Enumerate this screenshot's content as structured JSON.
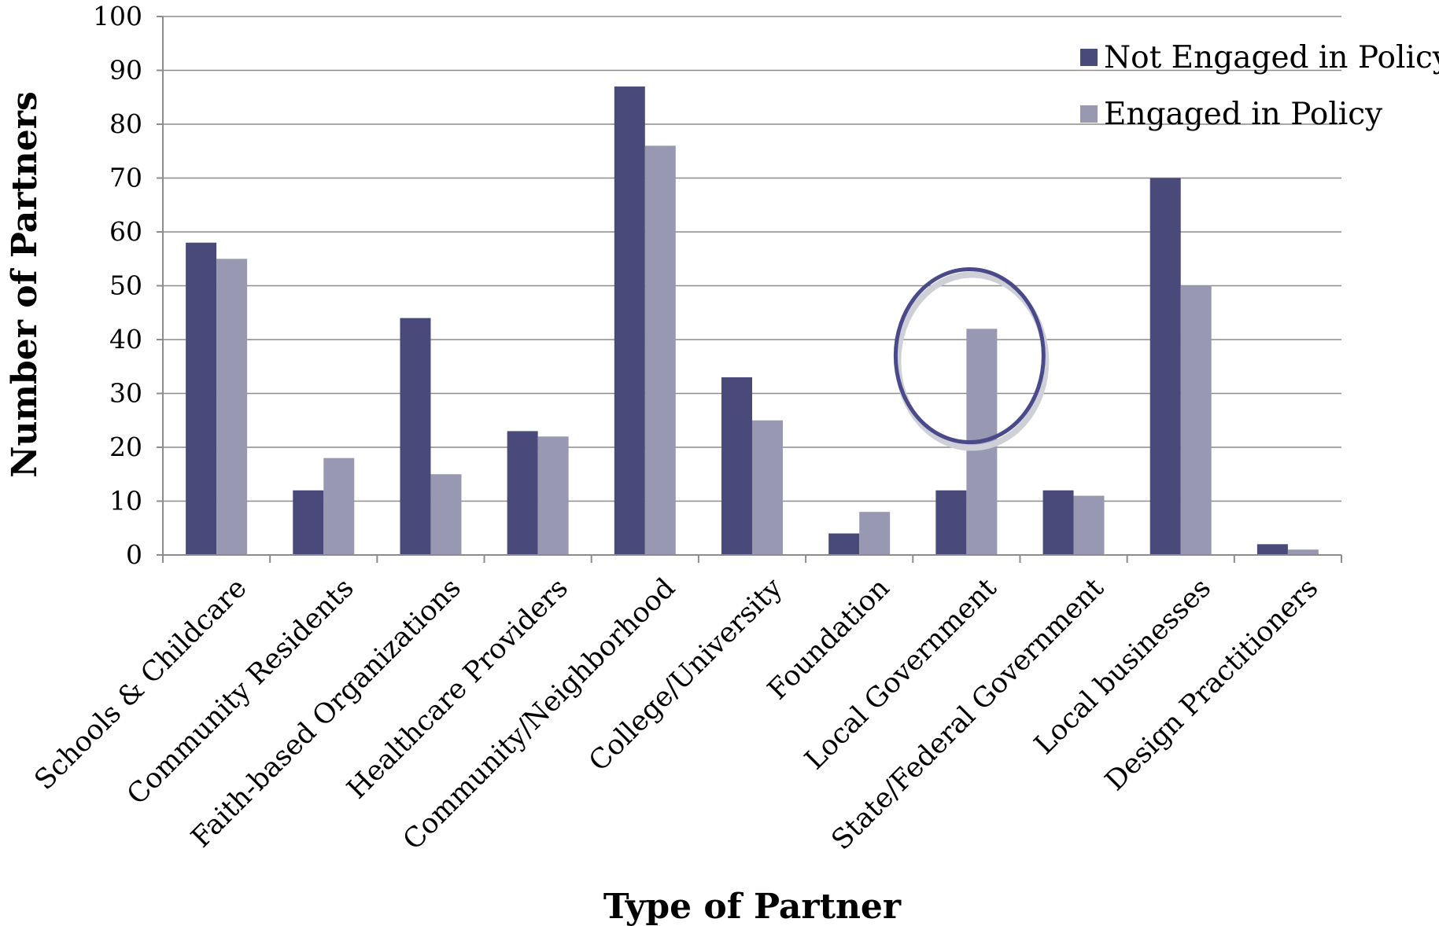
{
  "chart_data": {
    "type": "bar",
    "title": "",
    "xlabel": "Type of Partner",
    "ylabel": "Number of Partners",
    "ylim": [
      0,
      100
    ],
    "yticks": [
      0,
      10,
      20,
      30,
      40,
      50,
      60,
      70,
      80,
      90,
      100
    ],
    "grid": true,
    "legend_position": "top-right",
    "categories": [
      "Schools & Childcare",
      "Community Residents",
      "Faith-based Organizations",
      "Healthcare Providers",
      "Community/Neighborhood",
      "College/University",
      "Foundation",
      "Local Government",
      "State/Federal Government",
      "Local businesses",
      "Design Practitioners"
    ],
    "series": [
      {
        "name": "Not Engaged in Policy",
        "color": "#4a4a7a",
        "values": [
          58,
          12,
          44,
          23,
          87,
          33,
          4,
          12,
          12,
          70,
          2
        ]
      },
      {
        "name": "Engaged in Policy",
        "color": "#9898b2",
        "values": [
          55,
          18,
          15,
          22,
          76,
          25,
          8,
          42,
          11,
          50,
          1
        ]
      }
    ],
    "annotations": [
      {
        "type": "ellipse",
        "category": "Local Government",
        "color": "#4a4a8a"
      }
    ]
  }
}
